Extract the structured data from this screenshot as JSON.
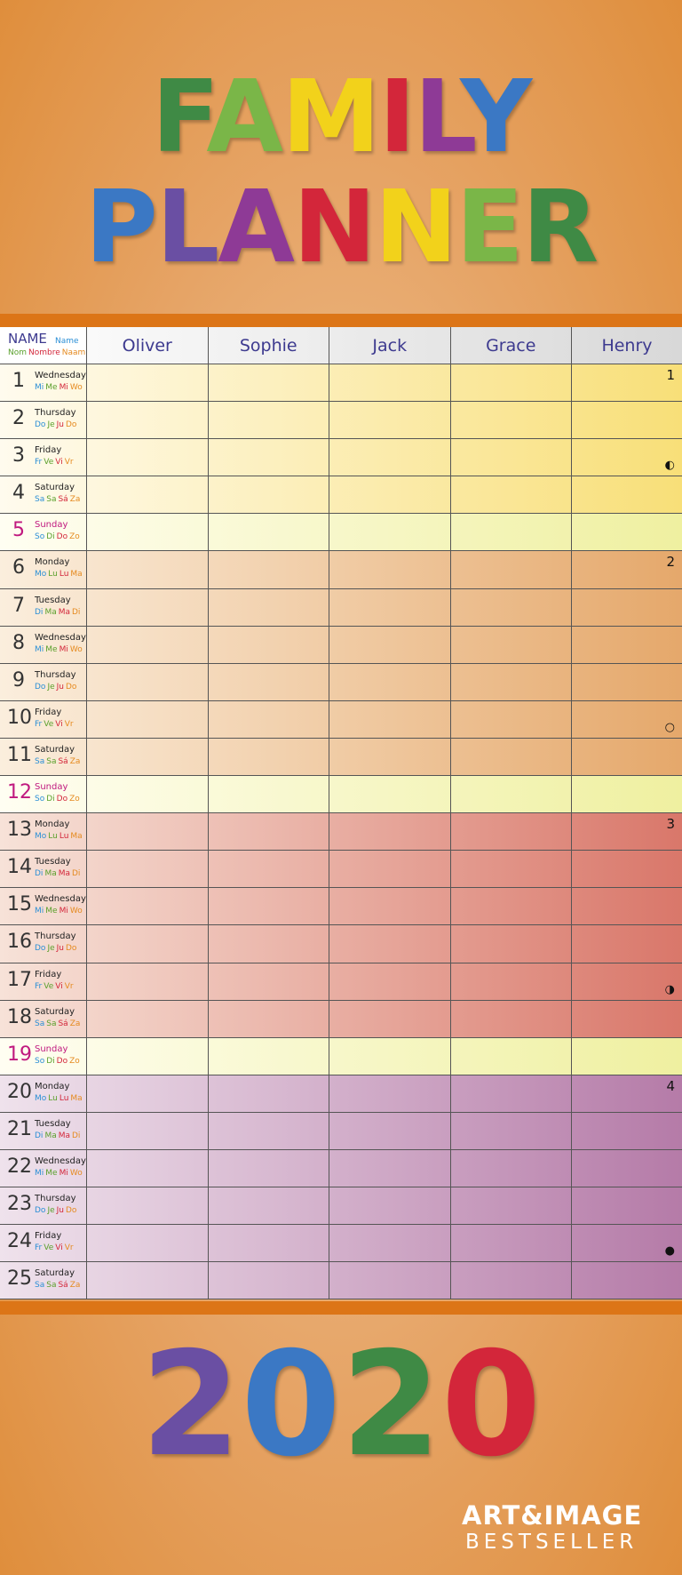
{
  "title_lines": [
    [
      {
        "text": "F",
        "color": "#3f8a45"
      },
      {
        "text": "A",
        "color": "#7ab648"
      },
      {
        "text": "M",
        "color": "#f2d21b"
      },
      {
        "text": "I",
        "color": "#d3263a"
      },
      {
        "text": "L",
        "color": "#8e3a96"
      },
      {
        "text": "Y",
        "color": "#3b78c4"
      }
    ],
    [
      {
        "text": "P",
        "color": "#3b78c4"
      },
      {
        "text": "L",
        "color": "#6a4fa3"
      },
      {
        "text": "A",
        "color": "#8e3a96"
      },
      {
        "text": "N",
        "color": "#d3263a"
      },
      {
        "text": "N",
        "color": "#f2d21b"
      },
      {
        "text": "E",
        "color": "#7ab648"
      },
      {
        "text": "R",
        "color": "#3f8a45"
      }
    ]
  ],
  "header": {
    "name_big": "NAME",
    "name_small": "Name",
    "name_langs": [
      {
        "text": "Nom",
        "color": "#5aa02c"
      },
      {
        "text": "Nombre",
        "color": "#d3263a"
      },
      {
        "text": "Naam",
        "color": "#e58a1f"
      }
    ],
    "people": [
      "Oliver",
      "Sophie",
      "Jack",
      "Grace",
      "Henry"
    ]
  },
  "abbr_colors": [
    "#2b8fd6",
    "#5aa02c",
    "#d3263a",
    "#e58a1f"
  ],
  "days": [
    {
      "num": "1",
      "name": "Wednesday",
      "abbr": [
        "Mi",
        "Me",
        "Mi",
        "Wo"
      ],
      "note": "1"
    },
    {
      "num": "2",
      "name": "Thursday",
      "abbr": [
        "Do",
        "Je",
        "Ju",
        "Do"
      ]
    },
    {
      "num": "3",
      "name": "Friday",
      "abbr": [
        "Fr",
        "Ve",
        "Vi",
        "Vr"
      ],
      "moon": "◐"
    },
    {
      "num": "4",
      "name": "Saturday",
      "abbr": [
        "Sa",
        "Sa",
        "Sá",
        "Za"
      ]
    },
    {
      "num": "5",
      "name": "Sunday",
      "abbr": [
        "So",
        "Di",
        "Do",
        "Zo"
      ]
    },
    {
      "num": "6",
      "name": "Monday",
      "abbr": [
        "Mo",
        "Lu",
        "Lu",
        "Ma"
      ],
      "note": "2"
    },
    {
      "num": "7",
      "name": "Tuesday",
      "abbr": [
        "Di",
        "Ma",
        "Ma",
        "Di"
      ]
    },
    {
      "num": "8",
      "name": "Wednesday",
      "abbr": [
        "Mi",
        "Me",
        "Mi",
        "Wo"
      ]
    },
    {
      "num": "9",
      "name": "Thursday",
      "abbr": [
        "Do",
        "Je",
        "Ju",
        "Do"
      ]
    },
    {
      "num": "10",
      "name": "Friday",
      "abbr": [
        "Fr",
        "Ve",
        "Vi",
        "Vr"
      ],
      "moon": "○"
    },
    {
      "num": "11",
      "name": "Saturday",
      "abbr": [
        "Sa",
        "Sa",
        "Sá",
        "Za"
      ]
    },
    {
      "num": "12",
      "name": "Sunday",
      "abbr": [
        "So",
        "Di",
        "Do",
        "Zo"
      ]
    },
    {
      "num": "13",
      "name": "Monday",
      "abbr": [
        "Mo",
        "Lu",
        "Lu",
        "Ma"
      ],
      "note": "3"
    },
    {
      "num": "14",
      "name": "Tuesday",
      "abbr": [
        "Di",
        "Ma",
        "Ma",
        "Di"
      ]
    },
    {
      "num": "15",
      "name": "Wednesday",
      "abbr": [
        "Mi",
        "Me",
        "Mi",
        "Wo"
      ]
    },
    {
      "num": "16",
      "name": "Thursday",
      "abbr": [
        "Do",
        "Je",
        "Ju",
        "Do"
      ]
    },
    {
      "num": "17",
      "name": "Friday",
      "abbr": [
        "Fr",
        "Ve",
        "Vi",
        "Vr"
      ],
      "moon": "◑"
    },
    {
      "num": "18",
      "name": "Saturday",
      "abbr": [
        "Sa",
        "Sa",
        "Sá",
        "Za"
      ]
    },
    {
      "num": "19",
      "name": "Sunday",
      "abbr": [
        "So",
        "Di",
        "Do",
        "Zo"
      ]
    },
    {
      "num": "20",
      "name": "Monday",
      "abbr": [
        "Mo",
        "Lu",
        "Lu",
        "Ma"
      ],
      "note": "4"
    },
    {
      "num": "21",
      "name": "Tuesday",
      "abbr": [
        "Di",
        "Ma",
        "Ma",
        "Di"
      ]
    },
    {
      "num": "22",
      "name": "Wednesday",
      "abbr": [
        "Mi",
        "Me",
        "Mi",
        "Wo"
      ]
    },
    {
      "num": "23",
      "name": "Thursday",
      "abbr": [
        "Do",
        "Je",
        "Ju",
        "Do"
      ]
    },
    {
      "num": "24",
      "name": "Friday",
      "abbr": [
        "Fr",
        "Ve",
        "Vi",
        "Vr"
      ],
      "moon": "●"
    },
    {
      "num": "25",
      "name": "Saturday",
      "abbr": [
        "Sa",
        "Sa",
        "Sá",
        "Za"
      ]
    }
  ],
  "year": [
    {
      "text": "2",
      "color": "#6a4fa3"
    },
    {
      "text": "0",
      "color": "#3b78c4"
    },
    {
      "text": "2",
      "color": "#3f8a45"
    },
    {
      "text": "0",
      "color": "#d3263a"
    }
  ],
  "logo": {
    "line1": "ART&IMAGE",
    "line2": "BESTSELLER"
  }
}
